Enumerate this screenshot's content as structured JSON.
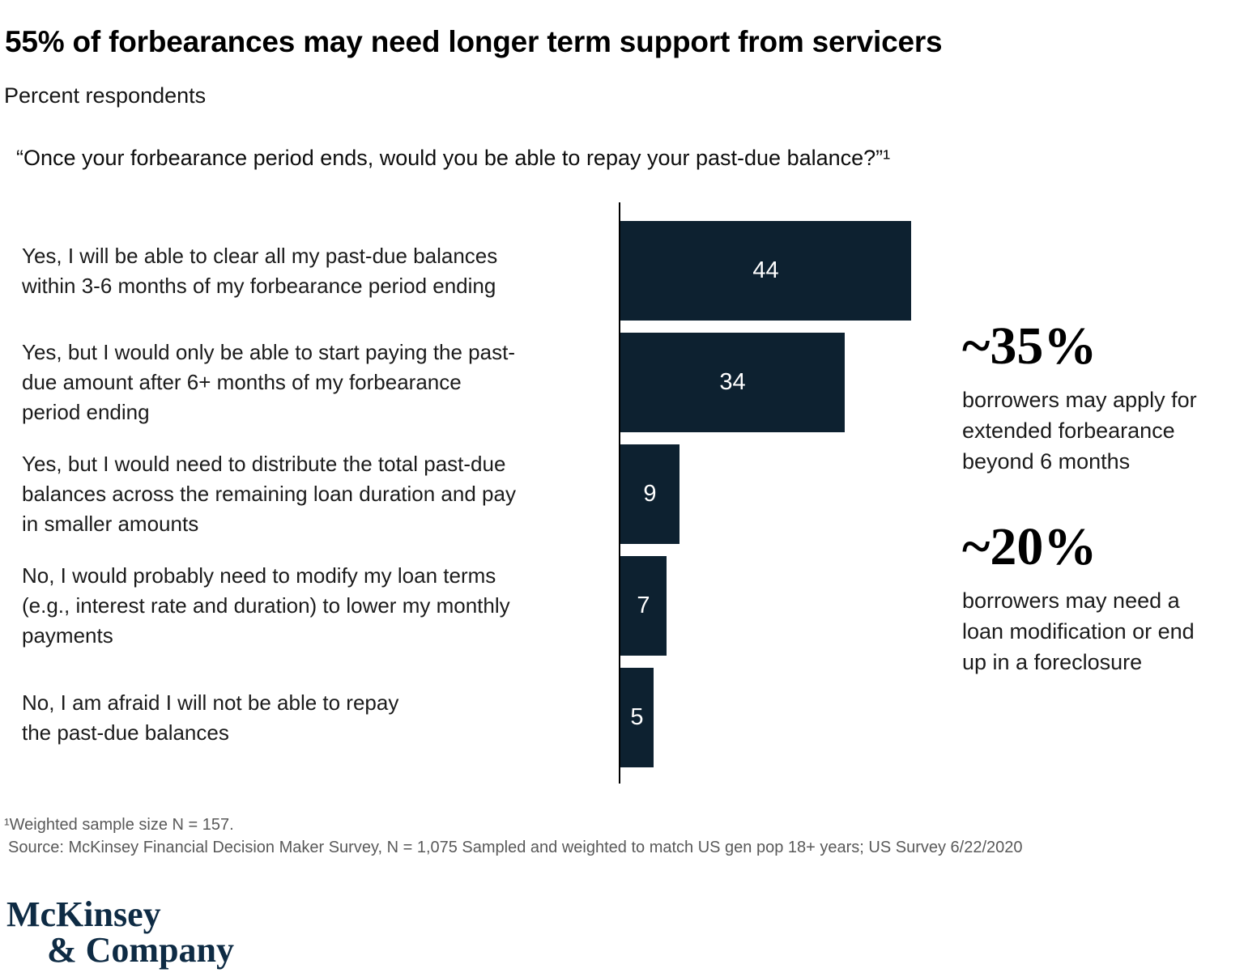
{
  "title": "55% of forbearances may need longer term support from servicers",
  "subtitle": "Percent respondents",
  "question": "“Once your forbearance period ends, would you be able to repay your past-due balance?”¹",
  "chart_data": {
    "type": "bar",
    "orientation": "horizontal",
    "title": "Percent respondents",
    "categories": [
      "Yes, I will be able to clear all my past-due balances within 3-6 months of my forbearance period ending",
      "Yes, but I would only be able to start paying the past-due amount after 6+ months of my forbearance period ending",
      "Yes, but I would need to distribute the total past-due balances across the remaining loan duration and pay in smaller amounts",
      "No, I would probably need to modify my loan terms (e.g., interest rate and duration) to lower my monthly payments",
      "No, I am afraid I will not be able to repay the past-due balances"
    ],
    "category_display_lines": [
      "Yes, I will be able to clear all my past-due balances\nwithin 3-6 months of my forbearance period ending",
      "Yes, but I would only be able to start paying the past-\ndue amount after 6+ months of my forbearance\nperiod ending",
      "Yes, but I would need to distribute the total past-due\nbalances across the remaining loan duration and pay\nin smaller amounts",
      "No, I would probably need to modify my loan terms\n(e.g., interest rate and duration) to lower my monthly\npayments",
      "No, I am afraid I will not be able to repay\nthe past-due balances"
    ],
    "values": [
      44,
      34,
      9,
      7,
      5
    ],
    "xlim": [
      0,
      47
    ],
    "value_labels_position": "inside-center",
    "grid": false,
    "legend": "none"
  },
  "annotations": [
    {
      "headline": "~35%",
      "body": "borrowers may apply for\nextended forbearance\nbeyond 6 months"
    },
    {
      "headline": "~20%",
      "body": "borrowers may need a\nloan modification or end\nup in a foreclosure"
    }
  ],
  "footnote": "¹Weighted sample size N = 157.",
  "source": "Source: McKinsey Financial Decision Maker Survey, N = 1,075 Sampled and weighted to match US gen pop 18+ years; US Survey 6/22/2020",
  "logo": {
    "line1": "McKinsey",
    "line2": "& Company"
  },
  "colors": {
    "bar": "#0d2130",
    "value_label": "#ffffff",
    "axis": "#000000",
    "text": "#1b1b1b",
    "footnote": "#595959",
    "logo_navy": "#0e2b44"
  }
}
